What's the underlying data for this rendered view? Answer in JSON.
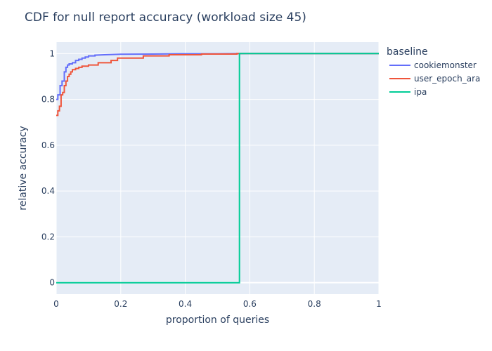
{
  "chart_data": {
    "type": "line",
    "title": "CDF for null report accuracy (workload size 45)",
    "xlabel": "proportion of queries",
    "ylabel": "relative accuracy",
    "xlim": [
      0,
      1
    ],
    "ylim": [
      -0.05,
      1.05
    ],
    "x_ticks": [
      "0",
      "0.2",
      "0.4",
      "0.6",
      "0.8",
      "1"
    ],
    "y_ticks": [
      "0",
      "0.2",
      "0.4",
      "0.6",
      "0.8",
      "1"
    ],
    "grid": true,
    "plot_background": "#e5ecf6",
    "legend": {
      "title": "baseline",
      "placement": "right"
    },
    "series": [
      {
        "name": "cookiemonster",
        "color": "#636efa",
        "x": [
          0.0,
          0.005,
          0.005,
          0.012,
          0.012,
          0.018,
          0.018,
          0.025,
          0.025,
          0.03,
          0.03,
          0.035,
          0.035,
          0.04,
          0.04,
          0.05,
          0.05,
          0.06,
          0.06,
          0.07,
          0.07,
          0.08,
          0.08,
          0.09,
          0.09,
          0.1,
          0.1,
          0.12,
          0.12,
          0.15,
          0.2,
          0.3,
          0.4,
          0.5,
          0.6,
          1.0
        ],
        "y": [
          0.8,
          0.8,
          0.82,
          0.82,
          0.86,
          0.86,
          0.88,
          0.88,
          0.92,
          0.92,
          0.94,
          0.94,
          0.95,
          0.95,
          0.955,
          0.955,
          0.96,
          0.96,
          0.97,
          0.97,
          0.975,
          0.975,
          0.98,
          0.98,
          0.985,
          0.985,
          0.99,
          0.99,
          0.993,
          0.995,
          0.997,
          0.998,
          0.999,
          0.999,
          1.0,
          1.0
        ]
      },
      {
        "name": "user_epoch_ara",
        "color": "#ef553b",
        "x": [
          0.0,
          0.005,
          0.005,
          0.01,
          0.01,
          0.015,
          0.015,
          0.02,
          0.02,
          0.025,
          0.025,
          0.03,
          0.03,
          0.035,
          0.035,
          0.04,
          0.04,
          0.045,
          0.045,
          0.05,
          0.05,
          0.06,
          0.06,
          0.07,
          0.07,
          0.08,
          0.08,
          0.1,
          0.1,
          0.13,
          0.13,
          0.17,
          0.17,
          0.19,
          0.19,
          0.27,
          0.27,
          0.35,
          0.35,
          0.45,
          0.45,
          0.56,
          0.56,
          1.0
        ],
        "y": [
          0.73,
          0.73,
          0.75,
          0.75,
          0.77,
          0.77,
          0.82,
          0.82,
          0.83,
          0.83,
          0.86,
          0.86,
          0.88,
          0.88,
          0.9,
          0.9,
          0.91,
          0.91,
          0.92,
          0.92,
          0.93,
          0.93,
          0.935,
          0.935,
          0.94,
          0.94,
          0.945,
          0.945,
          0.95,
          0.95,
          0.96,
          0.96,
          0.97,
          0.97,
          0.98,
          0.98,
          0.99,
          0.99,
          0.995,
          0.995,
          0.998,
          0.998,
          1.0,
          1.0
        ]
      },
      {
        "name": "ipa",
        "color": "#00cc96",
        "x": [
          0.0,
          0.568,
          0.568,
          1.0
        ],
        "y": [
          0.0,
          0.0,
          1.0,
          1.0
        ]
      }
    ]
  }
}
